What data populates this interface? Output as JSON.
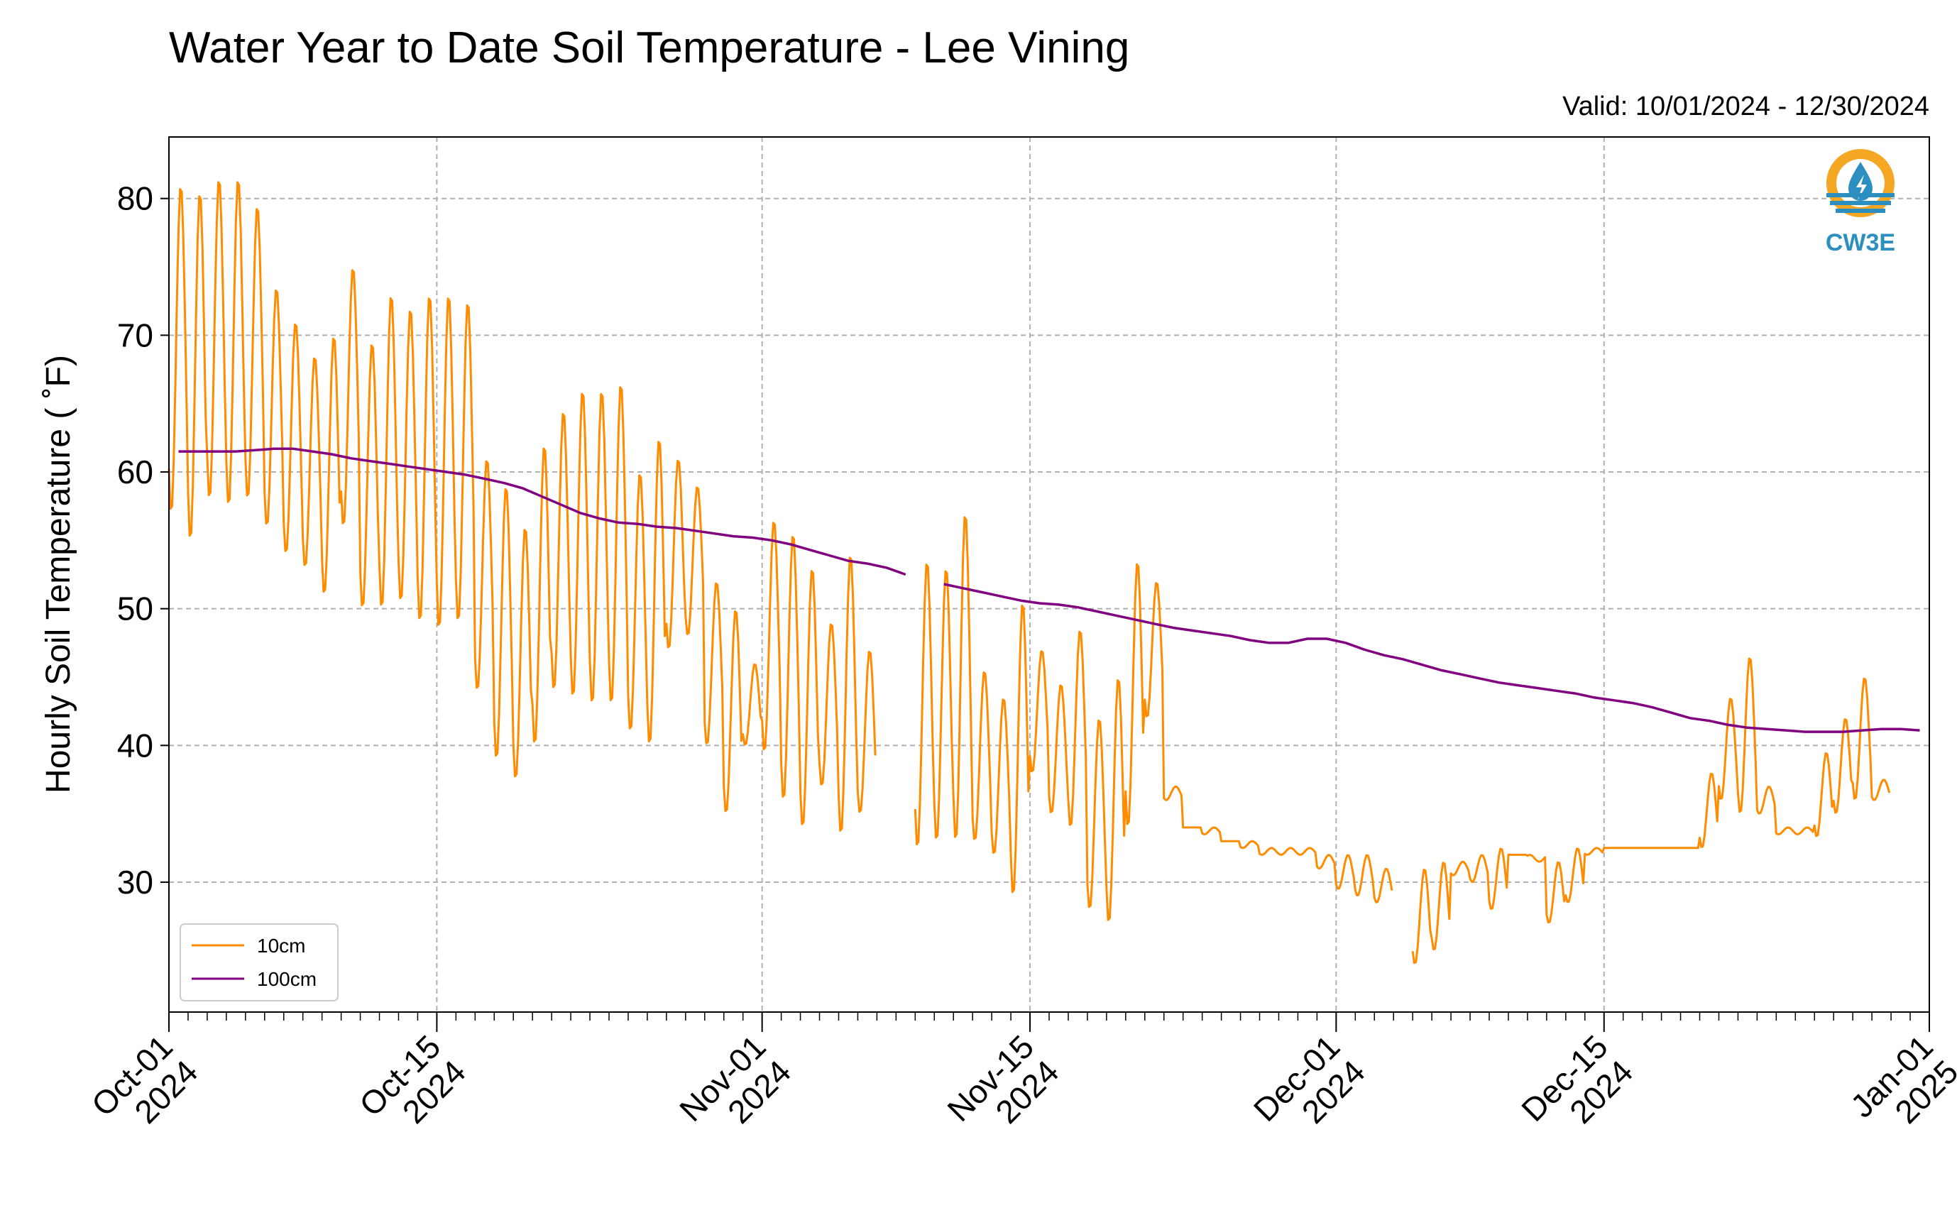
{
  "chart_data": {
    "type": "line",
    "title": "Water Year to Date Soil Temperature - Lee Vining",
    "subtitle": "Valid: 10/01/2024 - 12/30/2024",
    "xlabel": "",
    "ylabel": "Hourly Soil Temperature ( ˚F)",
    "xlim": [
      "2024-10-01",
      "2025-01-01"
    ],
    "ylim": [
      20.5,
      84.5
    ],
    "x_ticks": [
      {
        "date": "2024-10-01",
        "line1": "Oct-01",
        "line2": "2024"
      },
      {
        "date": "2024-10-15",
        "line1": "Oct-15",
        "line2": "2024"
      },
      {
        "date": "2024-11-01",
        "line1": "Nov-01",
        "line2": "2024"
      },
      {
        "date": "2024-11-15",
        "line1": "Nov-15",
        "line2": "2024"
      },
      {
        "date": "2024-12-01",
        "line1": "Dec-01",
        "line2": "2024"
      },
      {
        "date": "2024-12-15",
        "line1": "Dec-15",
        "line2": "2024"
      },
      {
        "date": "2025-01-01",
        "line1": "Jan-01",
        "line2": "2025"
      }
    ],
    "y_ticks": [
      30,
      40,
      50,
      60,
      70,
      80
    ],
    "grid": true,
    "legend_position": "lower-left",
    "series": [
      {
        "name": "10cm",
        "color": "#ff8c00",
        "daily_max": [
          81,
          80.5,
          81.5,
          81.5,
          79.5,
          73.5,
          71,
          68.5,
          70,
          75,
          69.5,
          73,
          72,
          73,
          73,
          72.5,
          61,
          59,
          56,
          62,
          64.5,
          66,
          66,
          66.5,
          60,
          62.5,
          61,
          59,
          52,
          50,
          46,
          56.5,
          55.5,
          53,
          49,
          54,
          47,
          46,
          null,
          53.5,
          53,
          57,
          45.5,
          43.5,
          50.5,
          47,
          44.5,
          48.5,
          42,
          45,
          53.5,
          52,
          37,
          34,
          34,
          33,
          33,
          32.5,
          32.5,
          32.5,
          32,
          32,
          32,
          31,
          null,
          31,
          31.5,
          31.5,
          32,
          32.5,
          32,
          31.5,
          31.5,
          32.5,
          32.5,
          32.5,
          32.5,
          32.5,
          32.5,
          32.5,
          38,
          43.5,
          46.5,
          37,
          34,
          34,
          39.5,
          42,
          45,
          37.5
        ],
        "daily_min": [
          57,
          55,
          58,
          57.5,
          58,
          56,
          54,
          53,
          51,
          56,
          50,
          50,
          50.5,
          49,
          48.5,
          49,
          44,
          39,
          37.5,
          40,
          44,
          43.5,
          43,
          43,
          41,
          40,
          47,
          48,
          40,
          35,
          40,
          39.5,
          36,
          34,
          37,
          33.5,
          35,
          null,
          35,
          32.5,
          33,
          33,
          33,
          32,
          29,
          38,
          35,
          34,
          28,
          27,
          34,
          42,
          36,
          34,
          33.5,
          33,
          32.5,
          32,
          32,
          32,
          31,
          29.5,
          29,
          28.5,
          null,
          24,
          25,
          30.5,
          30,
          28,
          32,
          32,
          27,
          28.5,
          32,
          32.5,
          32.5,
          32.5,
          32.5,
          32.5,
          32.5,
          36,
          35,
          35,
          33.5,
          33.5,
          33.3,
          35,
          36,
          36
        ]
      },
      {
        "name": "100cm",
        "color": "#800080",
        "daily_mean": [
          61.5,
          61.5,
          61.5,
          61.5,
          61.6,
          61.7,
          61.7,
          61.5,
          61.3,
          61,
          60.8,
          60.6,
          60.4,
          60.2,
          60,
          59.8,
          59.5,
          59.2,
          58.8,
          58.2,
          57.6,
          57,
          56.6,
          56.3,
          56.2,
          56,
          55.9,
          55.7,
          55.5,
          55.3,
          55.2,
          55,
          54.7,
          54.3,
          53.9,
          53.5,
          53.3,
          53,
          52.5,
          null,
          51.8,
          51.5,
          51.2,
          50.9,
          50.6,
          50.4,
          50.3,
          50.1,
          49.8,
          49.5,
          49.2,
          48.9,
          48.6,
          48.4,
          48.2,
          48,
          47.7,
          47.5,
          47.5,
          47.8,
          47.8,
          47.5,
          47,
          46.6,
          46.3,
          45.9,
          45.5,
          45.2,
          44.9,
          44.6,
          44.4,
          44.2,
          44,
          43.8,
          43.5,
          43.3,
          43.1,
          42.8,
          42.4,
          42,
          41.8,
          41.5,
          41.3,
          41.2,
          41.1,
          41,
          41,
          41,
          41.1,
          41.2,
          41.2,
          41.1
        ]
      }
    ]
  },
  "logo": {
    "text": "CW3E",
    "color": "#2c8fbf",
    "accent": "#f5a623"
  }
}
